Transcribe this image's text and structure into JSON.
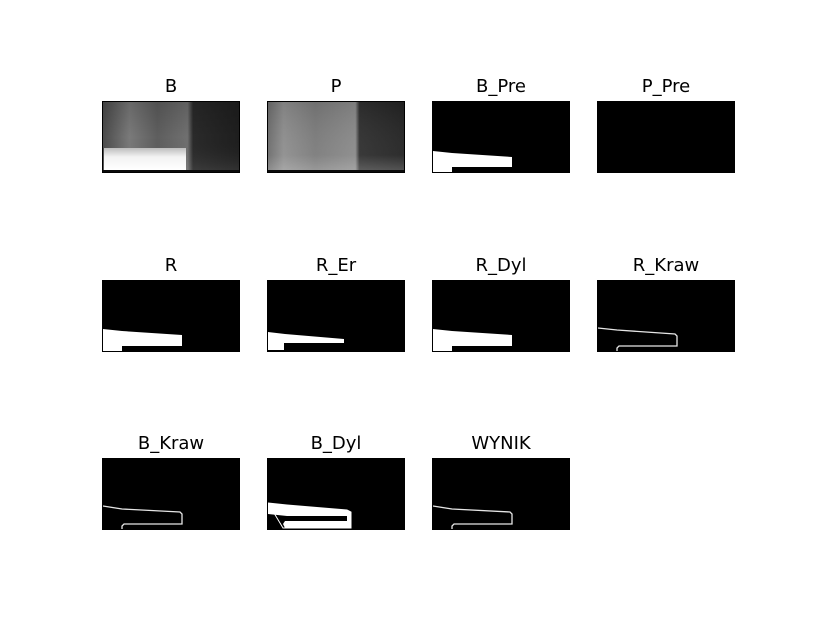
{
  "figure": {
    "panels": [
      {
        "title": "B"
      },
      {
        "title": "P"
      },
      {
        "title": "B_Pre"
      },
      {
        "title": "P_Pre"
      },
      {
        "title": "R"
      },
      {
        "title": "R_Er"
      },
      {
        "title": "R_Dyl"
      },
      {
        "title": "R_Kraw"
      },
      {
        "title": "B_Kraw"
      },
      {
        "title": "B_Dyl"
      },
      {
        "title": "WYNIK"
      }
    ]
  }
}
